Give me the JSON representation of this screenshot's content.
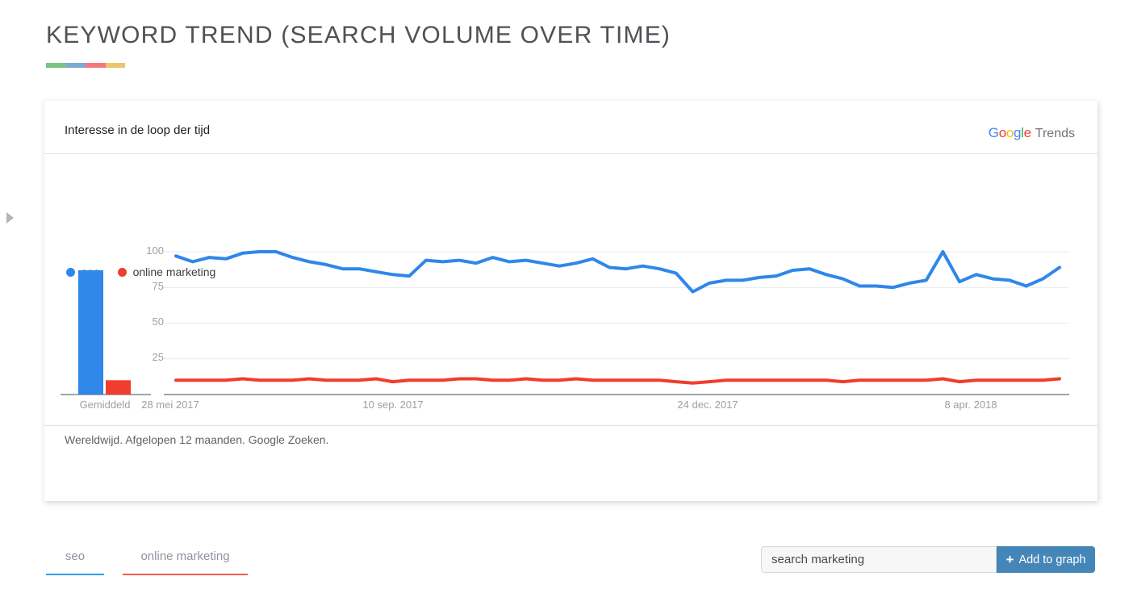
{
  "page": {
    "title": "KEYWORD TREND (SEARCH VOLUME OVER TIME)",
    "stripe_colors": [
      "#7cc284",
      "#7aabd5",
      "#f4797f",
      "#ecc46a"
    ]
  },
  "sidebar": {
    "expand_icon": "right-arrow"
  },
  "card": {
    "header": "Interesse in de loop der tijd",
    "brand": {
      "letters": [
        {
          "ch": "G",
          "color": "#4285F4"
        },
        {
          "ch": "o",
          "color": "#EA4335"
        },
        {
          "ch": "o",
          "color": "#FBBC05"
        },
        {
          "ch": "g",
          "color": "#4285F4"
        },
        {
          "ch": "l",
          "color": "#34A853"
        },
        {
          "ch": "e",
          "color": "#EA4335"
        }
      ],
      "suffix": "Trends"
    },
    "legend": [
      {
        "label": "seo",
        "color": "#2f87ea"
      },
      {
        "label": "online marketing",
        "color": "#f03d2e"
      }
    ],
    "footer": "Wereldwijd. Afgelopen 12 maanden. Google Zoeken."
  },
  "chart_data": {
    "type": "line",
    "title": "Interesse in de loop der tijd",
    "ylim": [
      0,
      100
    ],
    "yticks": [
      100,
      75,
      50,
      25
    ],
    "ytick_labels": [
      "100",
      "75",
      "50",
      "25"
    ],
    "xticklabels": [
      "28 mei 2017",
      "10 sep. 2017",
      "24 dec. 2017",
      "8 apr. 2018"
    ],
    "grid": true,
    "legend_position": "top-left",
    "averages": {
      "label": "Gemiddeld",
      "values": [
        {
          "name": "seo",
          "value": 87,
          "color": "#2f87ea"
        },
        {
          "name": "online marketing",
          "value": 10,
          "color": "#f03d2e"
        }
      ]
    },
    "series": [
      {
        "name": "seo",
        "color": "#2f87ea",
        "values": [
          97,
          93,
          96,
          95,
          99,
          100,
          100,
          96,
          93,
          91,
          88,
          88,
          86,
          84,
          83,
          94,
          93,
          94,
          92,
          96,
          93,
          94,
          92,
          90,
          92,
          95,
          89,
          88,
          90,
          88,
          85,
          72,
          78,
          80,
          80,
          82,
          83,
          87,
          88,
          84,
          81,
          76,
          76,
          75,
          78,
          80,
          100,
          79,
          84,
          81,
          80,
          76,
          81,
          89
        ]
      },
      {
        "name": "online marketing",
        "color": "#f03d2e",
        "values": [
          10,
          10,
          10,
          10,
          11,
          10,
          10,
          10,
          11,
          10,
          10,
          10,
          11,
          9,
          10,
          10,
          10,
          11,
          11,
          10,
          10,
          11,
          10,
          10,
          11,
          10,
          10,
          10,
          10,
          10,
          9,
          8,
          9,
          10,
          10,
          10,
          10,
          10,
          10,
          10,
          9,
          10,
          10,
          10,
          10,
          10,
          11,
          9,
          10,
          10,
          10,
          10,
          10,
          11
        ]
      }
    ]
  },
  "tabs": [
    {
      "label": "seo",
      "underline_color": "#2b9fe8"
    },
    {
      "label": "online marketing",
      "underline_color": "#f25a50"
    }
  ],
  "add_keyword": {
    "input_value": "search marketing",
    "plus": "+",
    "button_label": "Add to graph",
    "button_color": "#4586b8"
  }
}
